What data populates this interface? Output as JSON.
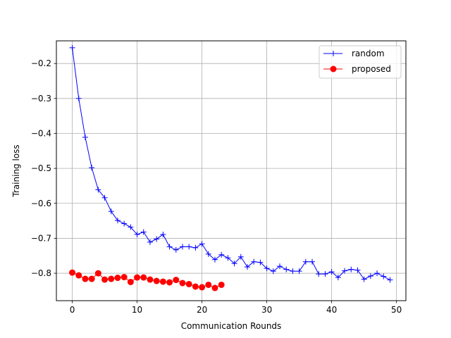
{
  "chart_data": {
    "type": "line",
    "xlabel": "Communication Rounds",
    "ylabel": "Training loss",
    "xlim": [
      -2.45,
      51.45
    ],
    "ylim": [
      -0.8784,
      -0.1352
    ],
    "xticks": [
      0,
      10,
      20,
      30,
      40,
      50
    ],
    "yticks": [
      -0.8,
      -0.7,
      -0.6,
      -0.5,
      -0.4,
      -0.3,
      -0.2
    ],
    "ytick_labels": [
      "−0.8",
      "−0.7",
      "−0.6",
      "−0.5",
      "−0.4",
      "−0.3",
      "−0.2"
    ],
    "grid": true,
    "legend_position": "top-right",
    "series": [
      {
        "name": "random",
        "color": "#0000ff",
        "marker": "plus",
        "x": [
          0,
          1,
          2,
          3,
          4,
          5,
          6,
          7,
          8,
          9,
          10,
          11,
          12,
          13,
          14,
          15,
          16,
          17,
          18,
          19,
          20,
          21,
          22,
          23,
          24,
          25,
          26,
          27,
          28,
          29,
          30,
          31,
          32,
          33,
          34,
          35,
          36,
          37,
          38,
          39,
          40,
          41,
          42,
          43,
          44,
          45,
          46,
          47,
          48,
          49
        ],
        "values": [
          -0.155,
          -0.3,
          -0.411,
          -0.498,
          -0.561,
          -0.584,
          -0.623,
          -0.649,
          -0.658,
          -0.668,
          -0.689,
          -0.682,
          -0.711,
          -0.702,
          -0.689,
          -0.724,
          -0.733,
          -0.724,
          -0.724,
          -0.727,
          -0.716,
          -0.745,
          -0.761,
          -0.747,
          -0.756,
          -0.772,
          -0.753,
          -0.782,
          -0.767,
          -0.769,
          -0.786,
          -0.794,
          -0.78,
          -0.789,
          -0.794,
          -0.794,
          -0.767,
          -0.767,
          -0.802,
          -0.802,
          -0.796,
          -0.812,
          -0.793,
          -0.789,
          -0.791,
          -0.817,
          -0.808,
          -0.8,
          -0.809,
          -0.819
        ]
      },
      {
        "name": "proposed",
        "color": "#ff0000",
        "marker": "circle",
        "x": [
          0,
          1,
          2,
          3,
          4,
          5,
          6,
          7,
          8,
          9,
          10,
          11,
          12,
          13,
          14,
          15,
          16,
          17,
          18,
          19,
          20,
          21,
          22,
          23
        ],
        "values": [
          -0.798,
          -0.806,
          -0.816,
          -0.816,
          -0.8,
          -0.818,
          -0.816,
          -0.813,
          -0.811,
          -0.825,
          -0.812,
          -0.812,
          -0.818,
          -0.822,
          -0.824,
          -0.826,
          -0.819,
          -0.828,
          -0.831,
          -0.838,
          -0.84,
          -0.833,
          -0.842,
          -0.833
        ]
      }
    ]
  }
}
